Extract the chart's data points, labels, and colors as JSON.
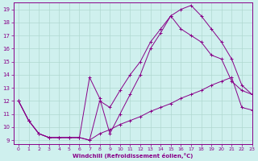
{
  "xlabel": "Windchill (Refroidissement éolien,°C)",
  "xlim": [
    -0.5,
    23
  ],
  "ylim": [
    8.7,
    19.5
  ],
  "yticks": [
    9,
    10,
    11,
    12,
    13,
    14,
    15,
    16,
    17,
    18,
    19
  ],
  "xticks": [
    0,
    1,
    2,
    3,
    4,
    5,
    6,
    7,
    8,
    9,
    10,
    11,
    12,
    13,
    14,
    15,
    16,
    17,
    18,
    19,
    20,
    21,
    22,
    23
  ],
  "background_color": "#cff0ee",
  "grid_color": "#b0d8d0",
  "line_color": "#880088",
  "line1_x": [
    0,
    1,
    2,
    3,
    4,
    5,
    6,
    7,
    8,
    9,
    10,
    11,
    12,
    13,
    14,
    15,
    16,
    17,
    18,
    19,
    20,
    21,
    22,
    23
  ],
  "line1_y": [
    12.0,
    10.5,
    9.5,
    9.2,
    9.2,
    9.2,
    9.2,
    9.0,
    9.5,
    9.8,
    10.2,
    10.5,
    10.8,
    11.2,
    11.5,
    11.8,
    12.2,
    12.5,
    12.8,
    13.2,
    13.5,
    13.8,
    11.5,
    11.3
  ],
  "line2_x": [
    0,
    1,
    2,
    3,
    4,
    5,
    6,
    7,
    8,
    9,
    10,
    11,
    12,
    13,
    14,
    15,
    16,
    17,
    18,
    19,
    20,
    21,
    22,
    23
  ],
  "line2_y": [
    12.0,
    10.5,
    9.5,
    9.2,
    9.2,
    9.2,
    9.2,
    13.8,
    12.2,
    9.5,
    11.0,
    12.5,
    14.0,
    16.0,
    17.2,
    18.5,
    19.0,
    19.3,
    18.5,
    17.5,
    16.5,
    15.2,
    13.2,
    12.5
  ],
  "line3_x": [
    0,
    1,
    2,
    3,
    4,
    5,
    6,
    7,
    8,
    9,
    10,
    11,
    12,
    13,
    14,
    15,
    16,
    17,
    18,
    19,
    20,
    21,
    22,
    23
  ],
  "line3_y": [
    12.0,
    10.5,
    9.5,
    9.2,
    9.2,
    9.2,
    9.2,
    9.0,
    12.0,
    11.5,
    12.8,
    14.0,
    15.0,
    16.5,
    17.5,
    18.5,
    17.5,
    17.0,
    16.5,
    15.5,
    15.2,
    13.5,
    12.8,
    12.5
  ]
}
